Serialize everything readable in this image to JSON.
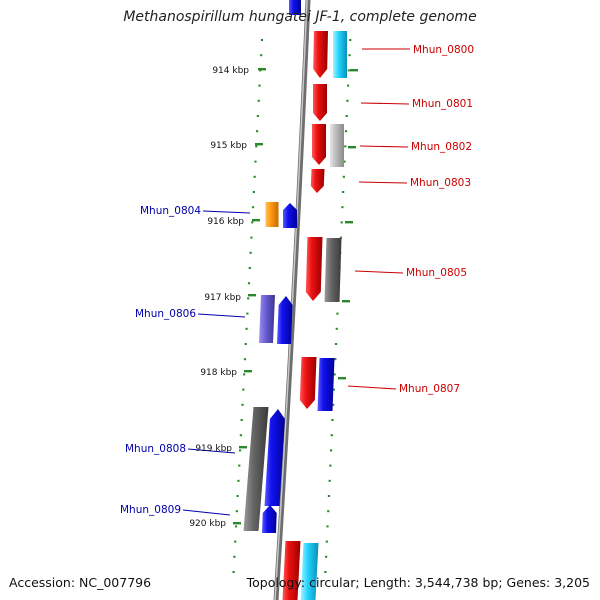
{
  "title": "Methanospirillum hungatei JF-1, complete genome",
  "accession": "Accession: NC_007796",
  "summary": "Topology: circular; Length: 3,544,738 bp; Genes: 3,205",
  "colors": {
    "forward_labels": "#cc0000",
    "reverse_labels": "#0000aa",
    "ticks": "#2a8a2a",
    "backbone": "#8a8a8a"
  },
  "scale_labels": [
    "914 kbp",
    "915 kbp",
    "916 kbp",
    "917 kbp",
    "918 kbp",
    "919 kbp",
    "920 kbp"
  ],
  "forward_genes": [
    "Mhun_0800",
    "Mhun_0801",
    "Mhun_0802",
    "Mhun_0803",
    "Mhun_0805",
    "Mhun_0807"
  ],
  "reverse_genes": [
    "Mhun_0804",
    "Mhun_0806",
    "Mhun_0808",
    "Mhun_0809"
  ]
}
